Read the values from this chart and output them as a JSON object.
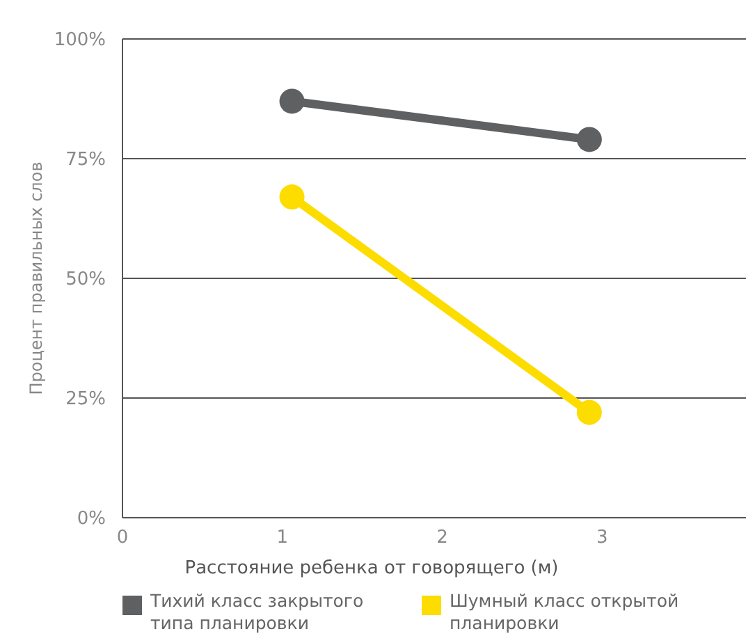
{
  "chart_data": {
    "type": "line",
    "xlabel": "Расстояние ребенка от говорящего (м)",
    "ylabel": "Процент правильных слов",
    "x": [
      1.06,
      2.92
    ],
    "series": [
      {
        "name": "Тихий класс закрытого типа планировки",
        "color": "#5f6062",
        "values": [
          87,
          79
        ]
      },
      {
        "name": "Шумный класс открытой планировки",
        "color": "#fddc00",
        "values": [
          67,
          22
        ]
      }
    ],
    "xlim": [
      0,
      3.9
    ],
    "xticks": [
      0,
      1,
      2,
      3
    ],
    "ylim": [
      0,
      100
    ],
    "yticks": [
      {
        "value": 0,
        "label": "0%"
      },
      {
        "value": 25,
        "label": "25%"
      },
      {
        "value": 50,
        "label": "50%"
      },
      {
        "value": 75,
        "label": "75%"
      },
      {
        "value": 100,
        "label": "100%"
      }
    ],
    "grid": "y",
    "legend": "bottom",
    "marker": "circle",
    "line_style": "solid"
  }
}
